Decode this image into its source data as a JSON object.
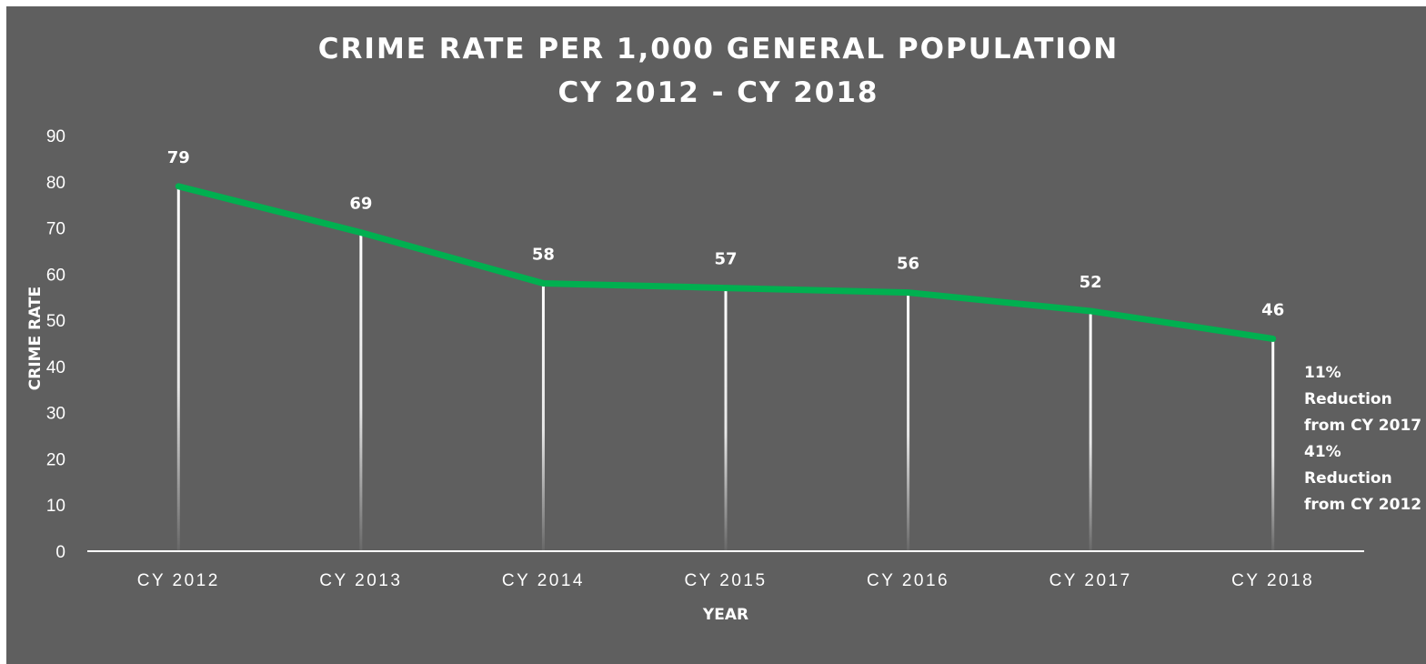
{
  "chart_data": {
    "type": "line",
    "title": [
      "CRIME RATE PER 1,000 GENERAL POPULATION",
      "CY 2012 - CY 2018"
    ],
    "xlabel": "YEAR",
    "ylabel": "CRIME RATE",
    "categories": [
      "CY 2012",
      "CY 2013",
      "CY 2014",
      "CY 2015",
      "CY 2016",
      "CY 2017",
      "CY 2018"
    ],
    "values": [
      79,
      69,
      58,
      57,
      56,
      52,
      46
    ],
    "data_labels": [
      "79",
      "69",
      "58",
      "57",
      "56",
      "52",
      "46"
    ],
    "ylim": [
      0,
      90
    ],
    "yticks": [
      0,
      10,
      20,
      30,
      40,
      50,
      60,
      70,
      80,
      90
    ],
    "grid": false,
    "drop_lines": true,
    "line_color": "#00b050",
    "background_color": "#5f5f5f",
    "annotation": [
      "11%",
      "Reduction",
      "from CY 2017",
      "41%",
      "Reduction",
      "from CY 2012"
    ]
  }
}
